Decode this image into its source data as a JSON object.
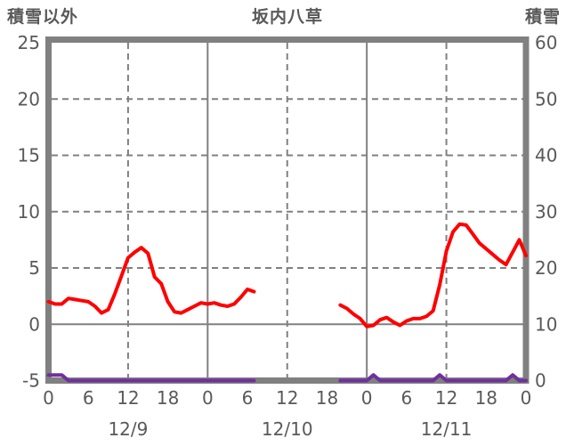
{
  "title": "坂内八草",
  "left_axis_title": "積雪以外",
  "right_axis_title": "積雪",
  "colors": {
    "temperature_line": "#ff0000",
    "snow_line": "#7030a0",
    "frame": "#808080",
    "grid": "#808080",
    "text": "#595959",
    "background": "#ffffff"
  },
  "chart_data": {
    "type": "line",
    "title": "坂内八草",
    "left_axis": {
      "title": "積雪以外",
      "min": -5,
      "max": 25,
      "ticks": [
        25,
        20,
        15,
        10,
        5,
        0,
        -5
      ]
    },
    "right_axis": {
      "title": "積雪",
      "min": 0,
      "max": 60,
      "ticks": [
        60,
        50,
        40,
        30,
        20,
        10,
        0
      ]
    },
    "x_axis": {
      "total_hours": 72,
      "tick_interval_hours": 6,
      "tick_labels": [
        "0",
        "6",
        "12",
        "18",
        "0",
        "6",
        "12",
        "18",
        "0",
        "6",
        "12",
        "18",
        "0"
      ],
      "date_labels": [
        {
          "text": "12/9",
          "center_hour": 12
        },
        {
          "text": "12/10",
          "center_hour": 36
        },
        {
          "text": "12/11",
          "center_hour": 60
        }
      ],
      "solid_vlines_hours": [
        24,
        48
      ],
      "dashed_vlines_hours": [
        12,
        36,
        60
      ]
    },
    "grid": {
      "dashed_hlines_left_values": [
        20,
        15,
        10,
        5
      ],
      "solid_hlines_left_values": [
        0
      ]
    },
    "series": [
      {
        "name": "積雪以外",
        "axis": "left",
        "color": "#ff0000",
        "segments": [
          {
            "start_hour": 0,
            "step_hours": 1,
            "values": [
              2.0,
              1.8,
              1.8,
              2.3,
              2.2,
              2.1,
              2.0,
              1.6,
              1.0,
              1.3,
              2.7,
              4.3,
              5.9,
              6.4,
              6.8,
              6.3,
              4.2,
              3.6,
              2.0,
              1.1,
              1.0,
              1.3,
              1.6,
              1.9,
              1.8,
              1.9,
              1.7,
              1.6,
              1.8,
              2.4,
              3.1,
              2.9
            ]
          },
          {
            "start_hour": 44,
            "step_hours": 1,
            "values": [
              1.7,
              1.4,
              0.9,
              0.5,
              -0.2,
              -0.1,
              0.4,
              0.6,
              0.2,
              -0.1,
              0.3,
              0.5,
              0.5,
              0.7,
              1.2,
              3.5,
              6.5,
              8.2,
              8.9,
              8.8,
              8.0,
              7.2,
              6.7,
              6.2,
              5.7,
              5.3,
              6.4,
              7.5,
              6.1
            ]
          }
        ]
      },
      {
        "name": "積雪",
        "axis": "right",
        "color": "#7030a0",
        "segments": [
          {
            "start_hour": 0,
            "step_hours": 1,
            "values": [
              1,
              1,
              1,
              0,
              0,
              0,
              0,
              0,
              0,
              0,
              0,
              0,
              0,
              0,
              0,
              0,
              0,
              0,
              0,
              0,
              0,
              0,
              0,
              0,
              0,
              0,
              0,
              0,
              0,
              0,
              0,
              0
            ]
          },
          {
            "start_hour": 44,
            "step_hours": 1,
            "values": [
              0,
              0,
              0,
              0,
              0,
              1,
              0,
              0,
              0,
              0,
              0,
              0,
              0,
              0,
              0,
              1,
              0,
              0,
              0,
              0,
              0,
              0,
              0,
              0,
              0,
              0,
              1,
              0,
              0
            ]
          }
        ]
      }
    ]
  }
}
